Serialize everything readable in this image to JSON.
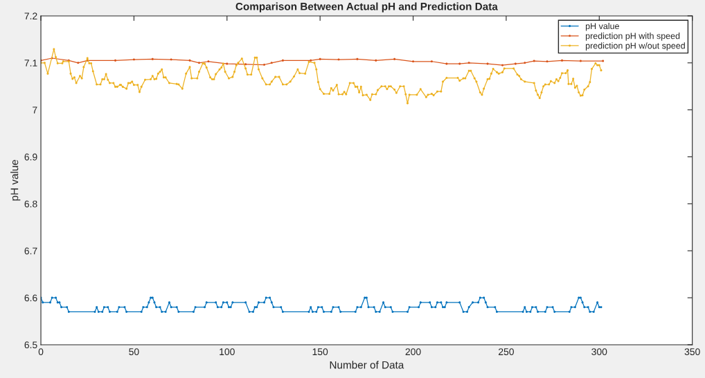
{
  "chart_data": {
    "type": "line",
    "title": "Comparison Between Actual pH and Prediction Data",
    "xlabel": "Number of Data",
    "ylabel": "pH value",
    "xlim": [
      0,
      350
    ],
    "xticks": [
      0,
      50,
      100,
      150,
      200,
      250,
      300,
      350
    ],
    "ylim": [
      6.5,
      7.2
    ],
    "yticks": [
      6.5,
      6.6,
      6.7,
      6.8,
      6.9,
      7,
      7.1,
      7.2
    ],
    "grid": false,
    "legend": "top right",
    "marker": "circle",
    "line_style": "solid",
    "series": [
      {
        "name": "pH value",
        "color": "#0072bd",
        "x": [
          0,
          1,
          5,
          6,
          8,
          9,
          10,
          11,
          14,
          15,
          29,
          30,
          31,
          33,
          34,
          36,
          37,
          41,
          42,
          45,
          46,
          54,
          55,
          57,
          58,
          59,
          60,
          61,
          62,
          64,
          65,
          67,
          69,
          70,
          73,
          74,
          82,
          83,
          88,
          89,
          94,
          95,
          97,
          98,
          100,
          101,
          102,
          103,
          110,
          112,
          114,
          115,
          116,
          117,
          120,
          121,
          123,
          124,
          125,
          129,
          130,
          144,
          145,
          146,
          148,
          149,
          151,
          152,
          156,
          157,
          160,
          161,
          169,
          170,
          172,
          174,
          175,
          176,
          179,
          180,
          182,
          184,
          185,
          188,
          189,
          197,
          198,
          203,
          204,
          209,
          210,
          212,
          213,
          215,
          216,
          217,
          218,
          225,
          227,
          229,
          230,
          232,
          235,
          236,
          238,
          239,
          240,
          244,
          245,
          259,
          260,
          261,
          263,
          264,
          266,
          267,
          271,
          272,
          275,
          276,
          284,
          285,
          287,
          289,
          290,
          291,
          292,
          294,
          295,
          297,
          299,
          300,
          301
        ],
        "values": [
          6.6,
          6.59,
          6.59,
          6.6,
          6.6,
          6.59,
          6.59,
          6.58,
          6.58,
          6.57,
          6.57,
          6.58,
          6.57,
          6.57,
          6.58,
          6.58,
          6.57,
          6.57,
          6.58,
          6.58,
          6.57,
          6.57,
          6.58,
          6.58,
          6.59,
          6.6,
          6.6,
          6.59,
          6.58,
          6.58,
          6.57,
          6.57,
          6.59,
          6.58,
          6.58,
          6.57,
          6.57,
          6.58,
          6.58,
          6.59,
          6.59,
          6.58,
          6.58,
          6.59,
          6.59,
          6.58,
          6.58,
          6.59,
          6.59,
          6.57,
          6.57,
          6.58,
          6.58,
          6.59,
          6.59,
          6.6,
          6.6,
          6.59,
          6.58,
          6.58,
          6.57,
          6.57,
          6.58,
          6.57,
          6.57,
          6.58,
          6.58,
          6.57,
          6.57,
          6.58,
          6.58,
          6.57,
          6.57,
          6.58,
          6.58,
          6.6,
          6.6,
          6.58,
          6.58,
          6.57,
          6.57,
          6.59,
          6.58,
          6.58,
          6.57,
          6.57,
          6.58,
          6.58,
          6.59,
          6.59,
          6.58,
          6.58,
          6.59,
          6.59,
          6.58,
          6.58,
          6.59,
          6.59,
          6.57,
          6.57,
          6.58,
          6.59,
          6.59,
          6.6,
          6.6,
          6.59,
          6.58,
          6.58,
          6.57,
          6.57,
          6.58,
          6.57,
          6.57,
          6.58,
          6.58,
          6.57,
          6.57,
          6.58,
          6.58,
          6.57,
          6.57,
          6.58,
          6.58,
          6.6,
          6.6,
          6.59,
          6.58,
          6.58,
          6.57,
          6.57,
          6.59,
          6.58,
          6.58
        ]
      },
      {
        "name": "prediction pH with speed",
        "color": "#d95319",
        "x": [
          0,
          6,
          15,
          20,
          25,
          40,
          50,
          60,
          70,
          80,
          85,
          90,
          100,
          110,
          120,
          124,
          130,
          145,
          150,
          160,
          170,
          180,
          190,
          200,
          210,
          218,
          225,
          230,
          240,
          248,
          255,
          260,
          265,
          272,
          280,
          290,
          302
        ],
        "values": [
          7.105,
          7.11,
          7.105,
          7.1,
          7.105,
          7.105,
          7.107,
          7.108,
          7.107,
          7.105,
          7.1,
          7.103,
          7.098,
          7.097,
          7.096,
          7.1,
          7.105,
          7.105,
          7.108,
          7.107,
          7.108,
          7.105,
          7.108,
          7.103,
          7.103,
          7.098,
          7.098,
          7.1,
          7.098,
          7.095,
          7.098,
          7.1,
          7.104,
          7.103,
          7.105,
          7.104,
          7.104
        ]
      },
      {
        "name": "prediction pH w/out speed",
        "color": "#edb120",
        "x": [
          0,
          2,
          3.7,
          7,
          8,
          9,
          11.5,
          12,
          15,
          16,
          17,
          18,
          19,
          21,
          22,
          23,
          25,
          26,
          27,
          28,
          30,
          32,
          33,
          34,
          35,
          36,
          37,
          39,
          40,
          41,
          42.5,
          43,
          44,
          46,
          47,
          48,
          49,
          50,
          52,
          53,
          54,
          56,
          59,
          60,
          61,
          62,
          63,
          64,
          65,
          66,
          67,
          69,
          73,
          74,
          76,
          78,
          80,
          81,
          84,
          85,
          87,
          88,
          89,
          91,
          92,
          93,
          94,
          96,
          97,
          98,
          99,
          101,
          103,
          104,
          105,
          106,
          108,
          110,
          111,
          113,
          115,
          116,
          117,
          119,
          121,
          123,
          124,
          126,
          128,
          130,
          132,
          134,
          136,
          138,
          139,
          142,
          144,
          147,
          148,
          149,
          150,
          152,
          155,
          156,
          157,
          159,
          160,
          162,
          163,
          164,
          166,
          168,
          169,
          170,
          171,
          172,
          173,
          175,
          177,
          178,
          180,
          181,
          183,
          185,
          186,
          187,
          188,
          190,
          191,
          193,
          195,
          196,
          197,
          198,
          202,
          204,
          207,
          208,
          210,
          211,
          213,
          215,
          216,
          218,
          224,
          225,
          227,
          228,
          230,
          231,
          233,
          234,
          236,
          237,
          238,
          240,
          241,
          242,
          243,
          245,
          246,
          248,
          249,
          254,
          256,
          257,
          258,
          260,
          265,
          266,
          267,
          268,
          269,
          270,
          271,
          273,
          274,
          276,
          277,
          278,
          279,
          280,
          282,
          283,
          283.5,
          285,
          286,
          287,
          288,
          289,
          290,
          291,
          292,
          294,
          295,
          296,
          298,
          299,
          300,
          301
        ],
        "values": [
          7.1,
          7.1,
          7.077,
          7.129,
          7.112,
          7.099,
          7.099,
          7.103,
          7.103,
          7.077,
          7.066,
          7.069,
          7.057,
          7.072,
          7.067,
          7.091,
          7.11,
          7.099,
          7.099,
          7.082,
          7.054,
          7.054,
          7.065,
          7.065,
          7.076,
          7.064,
          7.057,
          7.057,
          7.049,
          7.049,
          7.053,
          7.053,
          7.049,
          7.045,
          7.057,
          7.057,
          7.06,
          7.053,
          7.053,
          7.038,
          7.049,
          7.064,
          7.065,
          7.072,
          7.065,
          7.066,
          7.077,
          7.081,
          7.086,
          7.069,
          7.069,
          7.057,
          7.055,
          7.054,
          7.045,
          7.077,
          7.091,
          7.067,
          7.067,
          7.081,
          7.099,
          7.098,
          7.09,
          7.069,
          7.065,
          7.065,
          7.076,
          7.086,
          7.09,
          7.098,
          7.081,
          7.067,
          7.07,
          7.081,
          7.095,
          7.1,
          7.109,
          7.088,
          7.075,
          7.075,
          7.111,
          7.111,
          7.086,
          7.067,
          7.054,
          7.054,
          7.06,
          7.07,
          7.07,
          7.054,
          7.054,
          7.06,
          7.071,
          7.086,
          7.078,
          7.077,
          7.102,
          7.1,
          7.086,
          7.059,
          7.044,
          7.034,
          7.034,
          7.046,
          7.041,
          7.053,
          7.033,
          7.033,
          7.038,
          7.033,
          7.057,
          7.057,
          7.049,
          7.049,
          7.037,
          7.049,
          7.031,
          7.032,
          7.021,
          7.033,
          7.033,
          7.042,
          7.05,
          7.05,
          7.044,
          7.05,
          7.05,
          7.043,
          7.036,
          7.05,
          7.05,
          7.033,
          7.014,
          7.032,
          7.032,
          7.044,
          7.027,
          7.032,
          7.034,
          7.031,
          7.039,
          7.039,
          7.06,
          7.068,
          7.068,
          7.062,
          7.067,
          7.067,
          7.083,
          7.083,
          7.067,
          7.06,
          7.037,
          7.032,
          7.045,
          7.065,
          7.066,
          7.077,
          7.087,
          7.08,
          7.077,
          7.08,
          7.088,
          7.088,
          7.075,
          7.072,
          7.065,
          7.06,
          7.057,
          7.041,
          7.032,
          7.025,
          7.037,
          7.05,
          7.054,
          7.054,
          7.061,
          7.057,
          7.065,
          7.061,
          7.068,
          7.078,
          7.078,
          7.084,
          7.055,
          7.055,
          7.066,
          7.047,
          7.051,
          7.037,
          7.03,
          7.031,
          7.043,
          7.05,
          7.059,
          7.087,
          7.099,
          7.095,
          7.095,
          7.084
        ]
      }
    ]
  }
}
